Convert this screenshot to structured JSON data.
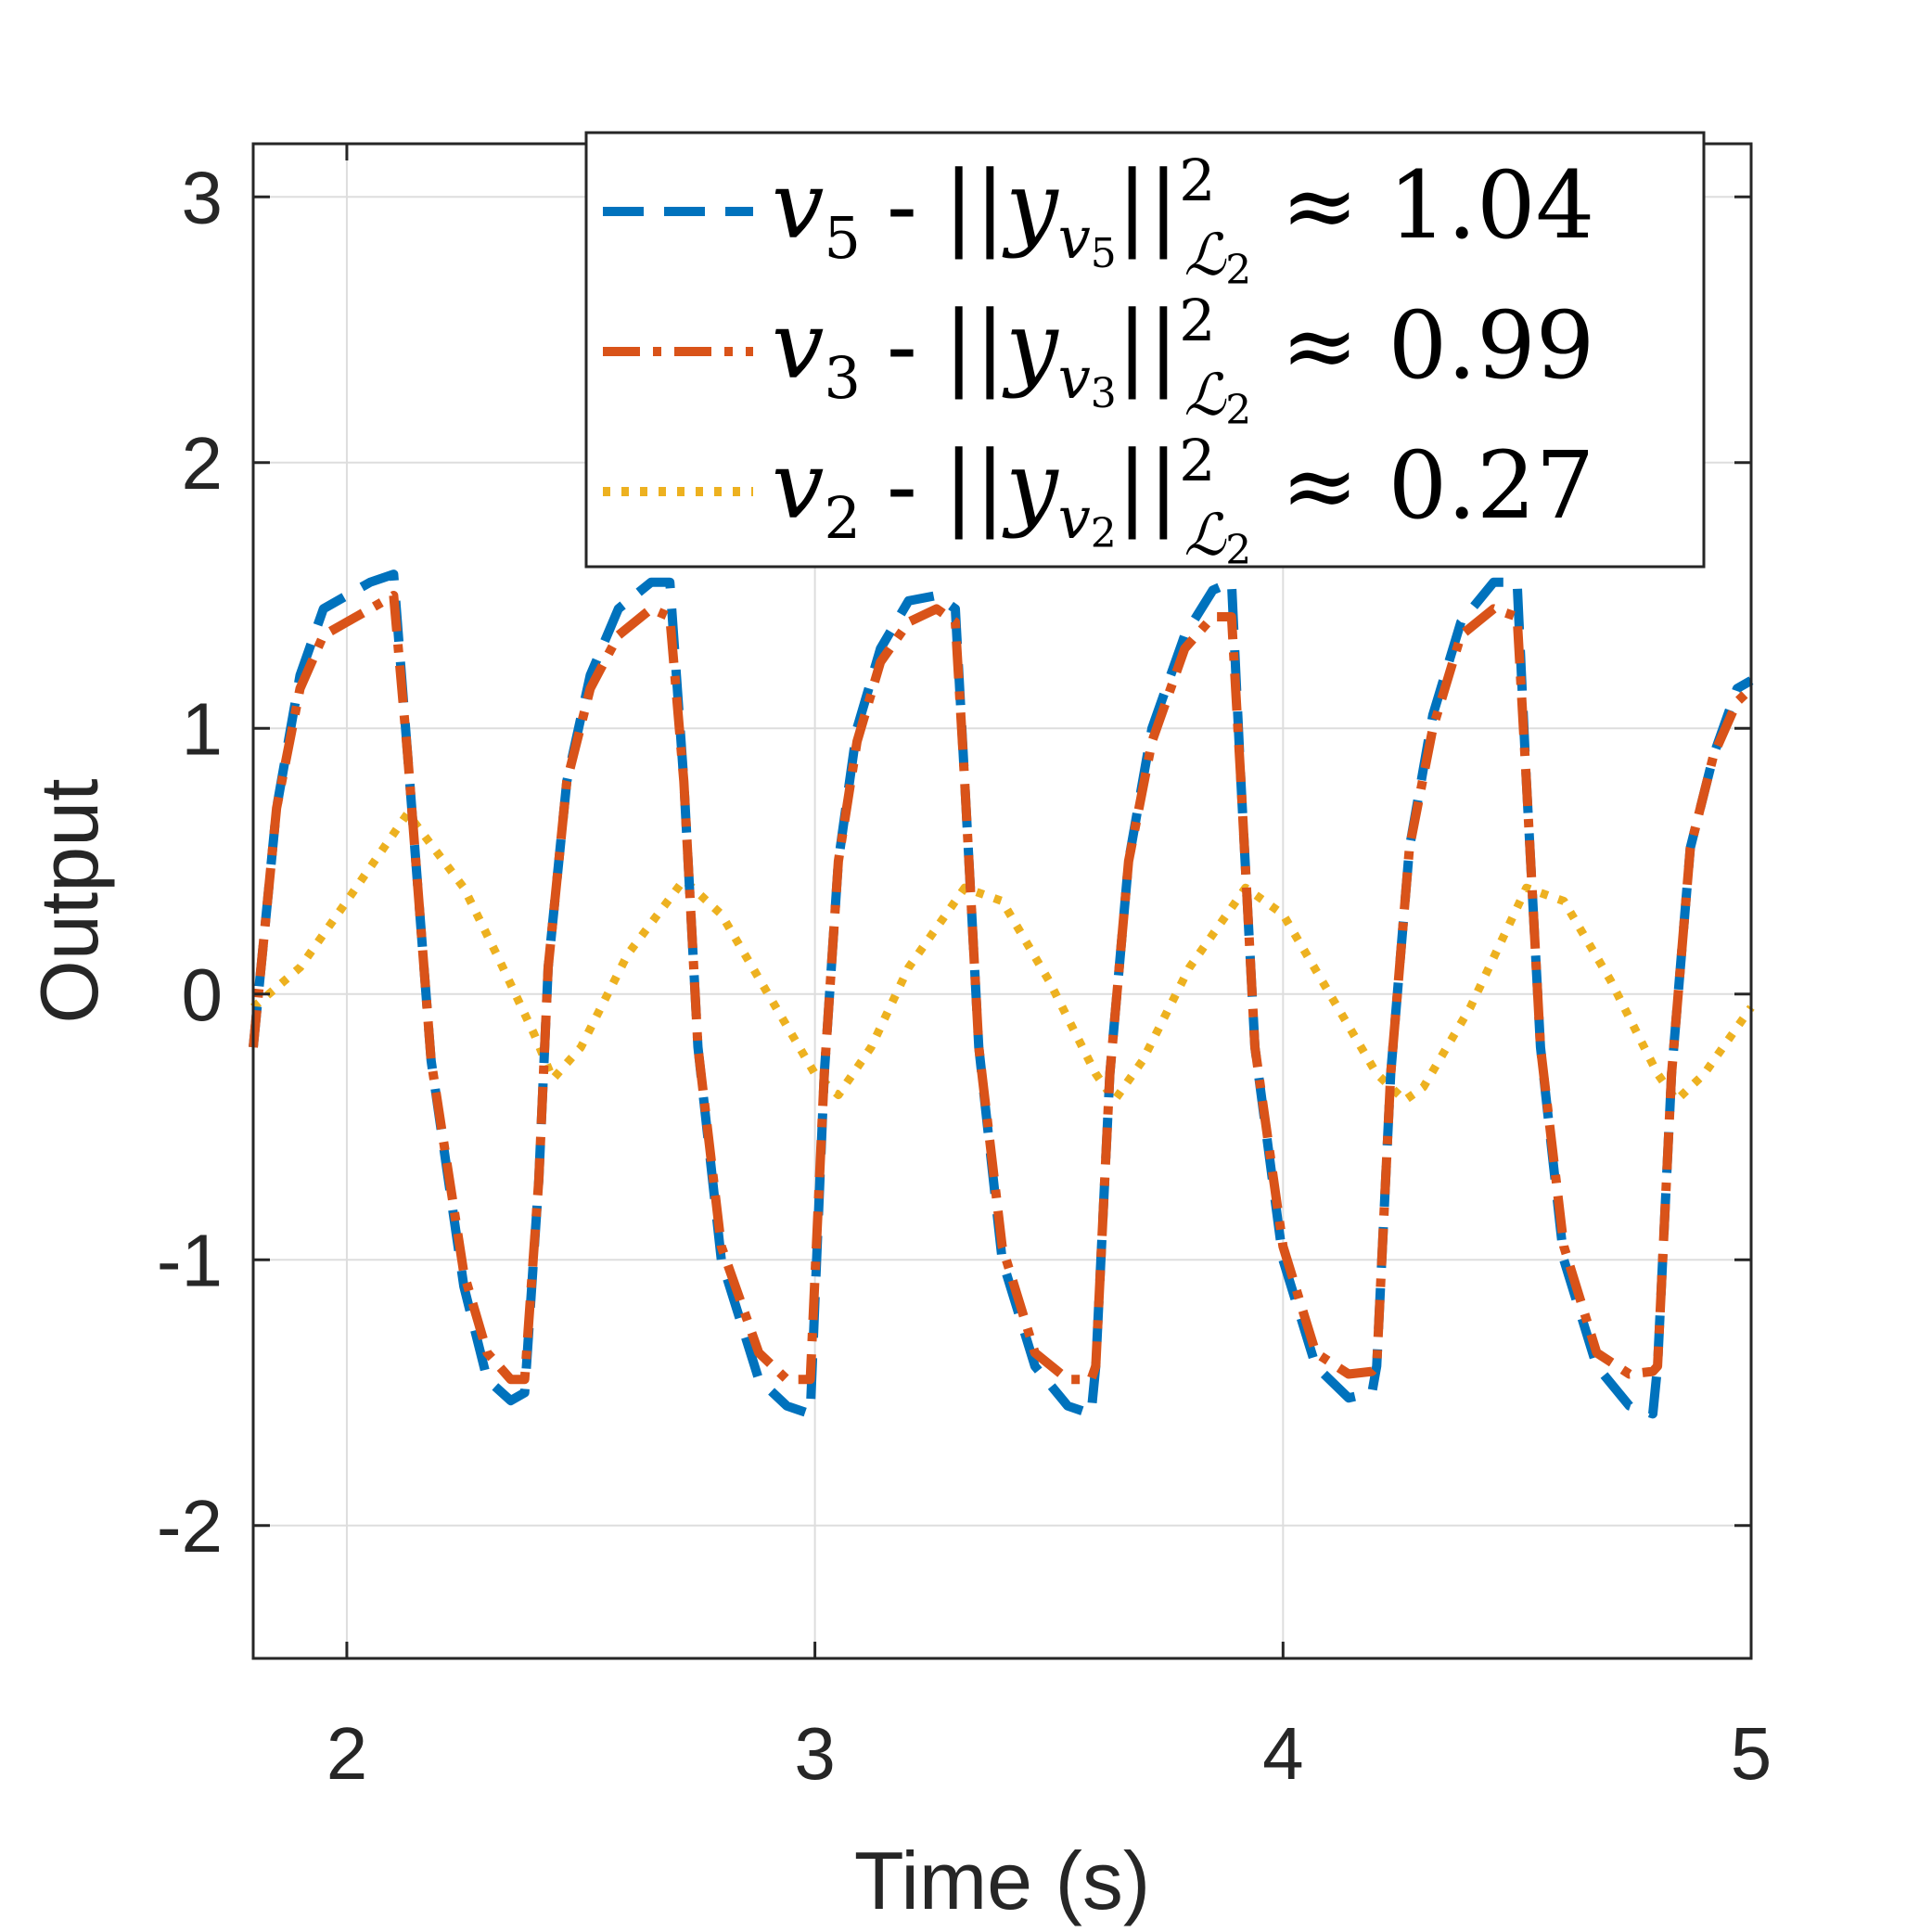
{
  "colors": {
    "v5": "#0072BD",
    "v3": "#D95319",
    "v2": "#EDB120",
    "axis": "#262626",
    "grid": "#dddddd"
  },
  "chart_data": {
    "type": "line",
    "title": "",
    "xlabel": "Time (s)",
    "ylabel": "Output",
    "xlim": [
      1.8,
      5
    ],
    "ylim": [
      -2.5,
      3.2
    ],
    "grid": true,
    "legend_position": "top-right",
    "xticks": [
      {
        "value": 2,
        "label": "2"
      },
      {
        "value": 3,
        "label": "3"
      },
      {
        "value": 4,
        "label": "4"
      },
      {
        "value": 5,
        "label": "5"
      }
    ],
    "yticks": [
      {
        "value": 3,
        "label": "3"
      },
      {
        "value": 2,
        "label": "2"
      },
      {
        "value": 1,
        "label": "1"
      },
      {
        "value": 0,
        "label": "0"
      },
      {
        "value": -1,
        "label": "-1"
      },
      {
        "value": -2,
        "label": "-2"
      }
    ],
    "series": [
      {
        "name": "v5",
        "label_var": "v",
        "label_sub": "5",
        "norm_text": "≈ 1.04",
        "linestyle": "dashed",
        "color": "#0072BD",
        "x": [
          1.8,
          1.85,
          1.9,
          1.95,
          2.0,
          2.05,
          2.1,
          2.13,
          2.18,
          2.25,
          2.3,
          2.35,
          2.38,
          2.41,
          2.43,
          2.47,
          2.52,
          2.58,
          2.65,
          2.69,
          2.72,
          2.75,
          2.8,
          2.88,
          2.94,
          2.99,
          3.02,
          3.05,
          3.09,
          3.14,
          3.2,
          3.26,
          3.3,
          3.32,
          3.35,
          3.4,
          3.47,
          3.54,
          3.59,
          3.6,
          3.63,
          3.67,
          3.72,
          3.79,
          3.85,
          3.89,
          3.91,
          3.94,
          4.0,
          4.07,
          4.14,
          4.19,
          4.2,
          4.23,
          4.27,
          4.32,
          4.38,
          4.45,
          4.5,
          4.52,
          4.55,
          4.6,
          4.67,
          4.74,
          4.79,
          4.8,
          4.83,
          4.87,
          4.92,
          4.97,
          5.0
        ],
        "values": [
          -0.2,
          0.7,
          1.2,
          1.45,
          1.5,
          1.55,
          1.58,
          0.9,
          -0.25,
          -1.1,
          -1.45,
          -1.53,
          -1.5,
          -0.7,
          0.1,
          0.8,
          1.2,
          1.45,
          1.55,
          1.55,
          0.8,
          -0.2,
          -1.0,
          -1.45,
          -1.55,
          -1.58,
          -0.3,
          0.5,
          1.0,
          1.3,
          1.48,
          1.5,
          1.45,
          0.8,
          -0.2,
          -1.0,
          -1.4,
          -1.55,
          -1.58,
          -1.4,
          -0.3,
          0.5,
          1.0,
          1.35,
          1.52,
          1.55,
          0.8,
          -0.2,
          -1.0,
          -1.4,
          -1.52,
          -1.5,
          -1.4,
          -0.3,
          0.55,
          1.05,
          1.4,
          1.55,
          1.55,
          0.8,
          -0.2,
          -1.0,
          -1.4,
          -1.55,
          -1.58,
          -1.4,
          -0.3,
          0.55,
          0.9,
          1.15,
          1.18
        ]
      },
      {
        "name": "v3",
        "label_var": "v",
        "label_sub": "3",
        "norm_text": "≈ 0.99",
        "linestyle": "dashdot",
        "color": "#D95319",
        "x": [
          1.8,
          1.85,
          1.9,
          1.95,
          2.0,
          2.05,
          2.1,
          2.13,
          2.18,
          2.25,
          2.3,
          2.35,
          2.38,
          2.41,
          2.43,
          2.47,
          2.52,
          2.58,
          2.65,
          2.69,
          2.72,
          2.75,
          2.8,
          2.88,
          2.94,
          2.99,
          3.02,
          3.05,
          3.09,
          3.14,
          3.2,
          3.26,
          3.3,
          3.32,
          3.35,
          3.4,
          3.47,
          3.54,
          3.59,
          3.6,
          3.63,
          3.67,
          3.72,
          3.79,
          3.85,
          3.89,
          3.91,
          3.94,
          4.0,
          4.07,
          4.14,
          4.19,
          4.2,
          4.23,
          4.27,
          4.32,
          4.38,
          4.45,
          4.5,
          4.52,
          4.55,
          4.6,
          4.67,
          4.74,
          4.79,
          4.8,
          4.83,
          4.87,
          4.92,
          4.97,
          5.0
        ],
        "values": [
          -0.2,
          0.7,
          1.15,
          1.35,
          1.4,
          1.45,
          1.5,
          0.9,
          -0.25,
          -1.05,
          -1.35,
          -1.45,
          -1.45,
          -0.7,
          0.1,
          0.8,
          1.15,
          1.35,
          1.45,
          1.42,
          0.8,
          -0.2,
          -0.95,
          -1.35,
          -1.45,
          -1.45,
          -0.3,
          0.5,
          0.95,
          1.25,
          1.4,
          1.45,
          1.4,
          0.8,
          -0.2,
          -0.95,
          -1.35,
          -1.45,
          -1.45,
          -1.4,
          -0.3,
          0.5,
          0.95,
          1.3,
          1.42,
          1.42,
          0.8,
          -0.2,
          -0.95,
          -1.35,
          -1.43,
          -1.42,
          -1.4,
          -0.3,
          0.55,
          1.0,
          1.35,
          1.45,
          1.42,
          0.8,
          -0.2,
          -0.95,
          -1.35,
          -1.43,
          -1.42,
          -1.4,
          -0.3,
          0.55,
          0.9,
          1.1,
          1.15
        ]
      },
      {
        "name": "v2",
        "label_var": "v",
        "label_sub": "2",
        "norm_text": "≈ 0.27",
        "linestyle": "dotted",
        "color": "#EDB120",
        "x": [
          1.8,
          1.9,
          2.0,
          2.13,
          2.25,
          2.32,
          2.4,
          2.44,
          2.5,
          2.6,
          2.72,
          2.8,
          2.9,
          3.0,
          3.05,
          3.12,
          3.2,
          3.32,
          3.4,
          3.5,
          3.6,
          3.64,
          3.7,
          3.8,
          3.92,
          4.0,
          4.1,
          4.2,
          4.26,
          4.3,
          4.4,
          4.52,
          4.6,
          4.7,
          4.8,
          4.84,
          4.9,
          5.0
        ],
        "values": [
          -0.05,
          0.1,
          0.35,
          0.68,
          0.4,
          0.15,
          -0.15,
          -0.32,
          -0.2,
          0.15,
          0.43,
          0.3,
          0.0,
          -0.3,
          -0.38,
          -0.2,
          0.1,
          0.4,
          0.35,
          0.05,
          -0.3,
          -0.4,
          -0.25,
          0.1,
          0.4,
          0.3,
          0.0,
          -0.3,
          -0.4,
          -0.35,
          -0.05,
          0.4,
          0.35,
          0.05,
          -0.3,
          -0.4,
          -0.3,
          -0.05
        ]
      }
    ]
  },
  "legend": {
    "norm_base": "y",
    "norm_sup": "2",
    "norm_script": "ℒ",
    "norm_script_sub": "2",
    "separator": "-"
  }
}
